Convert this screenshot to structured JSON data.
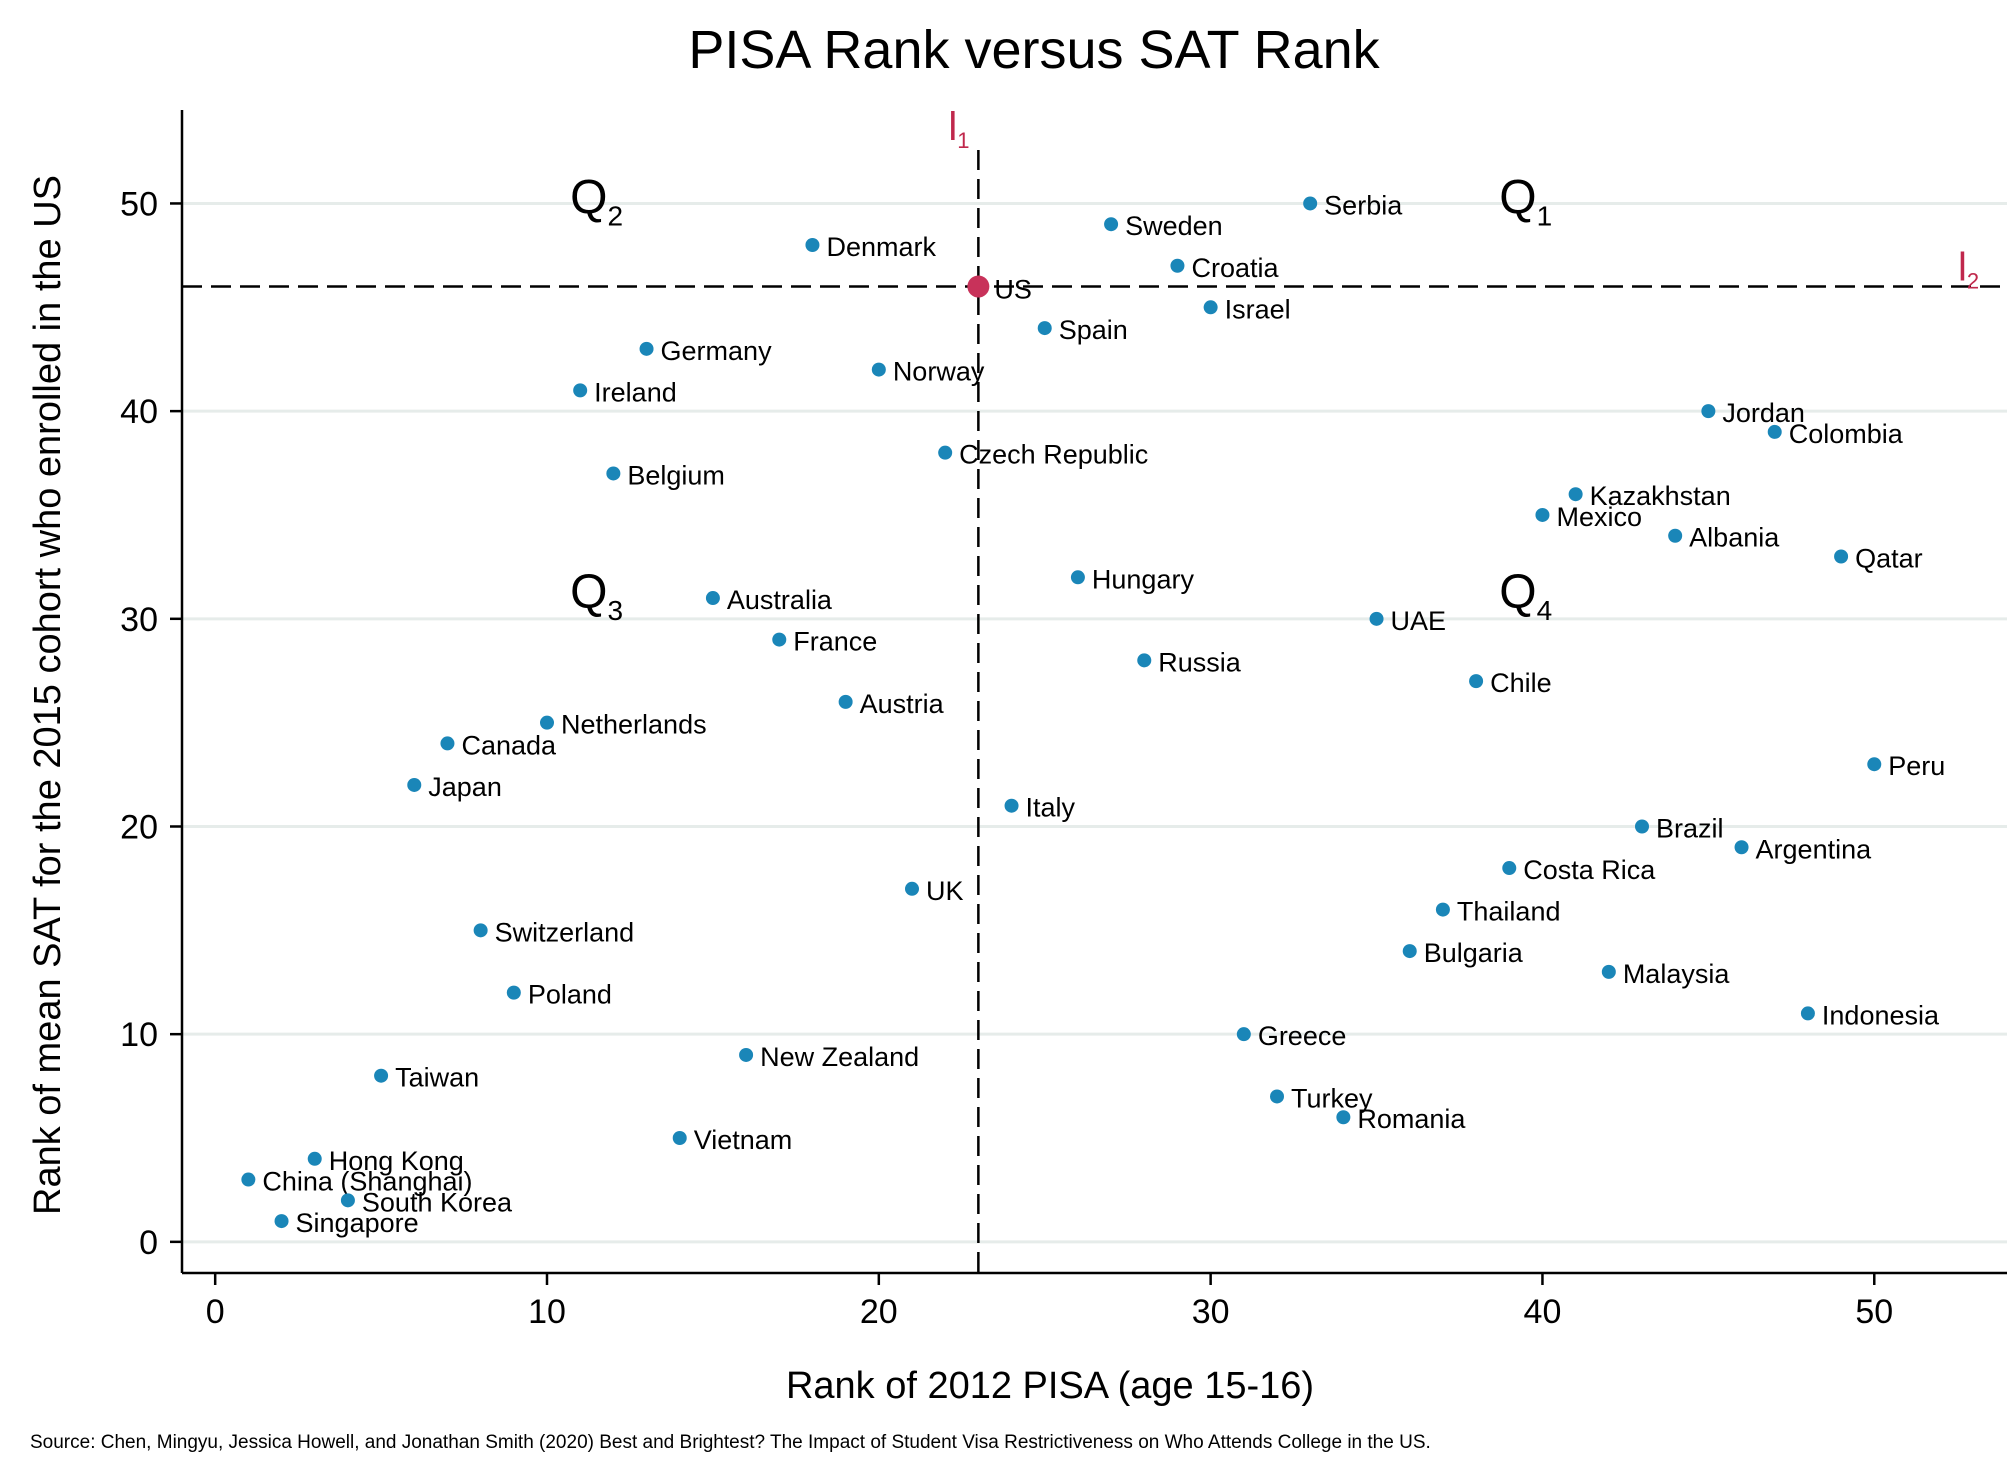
{
  "chart_data": {
    "type": "scatter",
    "title": "PISA Rank versus SAT Rank",
    "xlabel": "Rank of 2012 PISA (age 15-16)",
    "ylabel": "Rank of mean SAT for the 2015 cohort who enrolled in the US",
    "xlim": [
      -1,
      54
    ],
    "ylim": [
      -1.5,
      54.5
    ],
    "xticks": [
      0,
      10,
      20,
      30,
      40,
      50
    ],
    "yticks": [
      0,
      10,
      20,
      30,
      40,
      50
    ],
    "grid": "horizontal",
    "colors": {
      "point": "#1a86b8",
      "highlight": "#c8325a",
      "gridline": "#e6ecea",
      "tag": "#c0284c"
    },
    "vline": {
      "x": 23,
      "label": "l",
      "sub": "1"
    },
    "hline": {
      "y": 46,
      "label": "l",
      "sub": "2"
    },
    "quadrants": [
      {
        "label": "Q",
        "sub": "1",
        "x": 39,
        "y": 50
      },
      {
        "label": "Q",
        "sub": "2",
        "x": 11,
        "y": 50
      },
      {
        "label": "Q",
        "sub": "3",
        "x": 11,
        "y": 31
      },
      {
        "label": "Q",
        "sub": "4",
        "x": 39,
        "y": 31
      }
    ],
    "highlight": {
      "name": "US",
      "x": 23,
      "y": 46
    },
    "points": [
      {
        "name": "Serbia",
        "x": 33,
        "y": 50
      },
      {
        "name": "Sweden",
        "x": 27,
        "y": 49
      },
      {
        "name": "Denmark",
        "x": 18,
        "y": 48
      },
      {
        "name": "Croatia",
        "x": 29,
        "y": 47
      },
      {
        "name": "Israel",
        "x": 30,
        "y": 45
      },
      {
        "name": "Spain",
        "x": 25,
        "y": 44
      },
      {
        "name": "Germany",
        "x": 13,
        "y": 43
      },
      {
        "name": "Norway",
        "x": 20,
        "y": 42
      },
      {
        "name": "Ireland",
        "x": 11,
        "y": 41
      },
      {
        "name": "Jordan",
        "x": 45,
        "y": 40
      },
      {
        "name": "Colombia",
        "x": 47,
        "y": 39
      },
      {
        "name": "Czech Republic",
        "x": 22,
        "y": 38
      },
      {
        "name": "Belgium",
        "x": 12,
        "y": 37
      },
      {
        "name": "Kazakhstan",
        "x": 41,
        "y": 36
      },
      {
        "name": "Mexico",
        "x": 40,
        "y": 35
      },
      {
        "name": "Albania",
        "x": 44,
        "y": 34
      },
      {
        "name": "Qatar",
        "x": 49,
        "y": 33
      },
      {
        "name": "Hungary",
        "x": 26,
        "y": 32
      },
      {
        "name": "Australia",
        "x": 15,
        "y": 31
      },
      {
        "name": "UAE",
        "x": 35,
        "y": 30
      },
      {
        "name": "France",
        "x": 17,
        "y": 29
      },
      {
        "name": "Russia",
        "x": 28,
        "y": 28
      },
      {
        "name": "Chile",
        "x": 38,
        "y": 27
      },
      {
        "name": "Austria",
        "x": 19,
        "y": 26
      },
      {
        "name": "Netherlands",
        "x": 10,
        "y": 25
      },
      {
        "name": "Canada",
        "x": 7,
        "y": 24
      },
      {
        "name": "Peru",
        "x": 50,
        "y": 23
      },
      {
        "name": "Japan",
        "x": 6,
        "y": 22
      },
      {
        "name": "Italy",
        "x": 24,
        "y": 21
      },
      {
        "name": "Brazil",
        "x": 43,
        "y": 20
      },
      {
        "name": "Argentina",
        "x": 46,
        "y": 19
      },
      {
        "name": "Costa Rica",
        "x": 39,
        "y": 18
      },
      {
        "name": "UK",
        "x": 21,
        "y": 17
      },
      {
        "name": "Thailand",
        "x": 37,
        "y": 16
      },
      {
        "name": "Switzerland",
        "x": 8,
        "y": 15
      },
      {
        "name": "Bulgaria",
        "x": 36,
        "y": 14
      },
      {
        "name": "Malaysia",
        "x": 42,
        "y": 13
      },
      {
        "name": "Poland",
        "x": 9,
        "y": 12
      },
      {
        "name": "Indonesia",
        "x": 48,
        "y": 11
      },
      {
        "name": "Greece",
        "x": 31,
        "y": 10
      },
      {
        "name": "New Zealand",
        "x": 16,
        "y": 9
      },
      {
        "name": "Taiwan",
        "x": 5,
        "y": 8
      },
      {
        "name": "Turkey",
        "x": 32,
        "y": 7
      },
      {
        "name": "Romania",
        "x": 34,
        "y": 6
      },
      {
        "name": "Vietnam",
        "x": 14,
        "y": 5
      },
      {
        "name": "Hong Kong",
        "x": 3,
        "y": 4
      },
      {
        "name": "China (Shanghai)",
        "x": 1,
        "y": 3
      },
      {
        "name": "South Korea",
        "x": 4,
        "y": 2
      },
      {
        "name": "Singapore",
        "x": 2,
        "y": 1
      }
    ],
    "source": "Source: Chen, Mingyu, Jessica Howell, and Jonathan Smith (2020) Best and Brightest? The Impact of Student Visa Restrictiveness on Who Attends College in the US."
  }
}
